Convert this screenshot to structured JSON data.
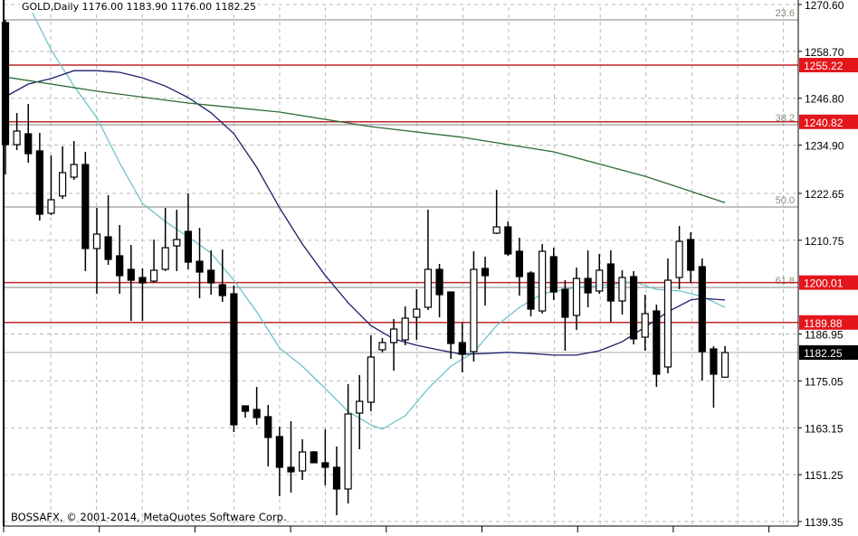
{
  "header": {
    "title": "GOLD,Daily  1176.00 1183.90 1176.00 1182.25"
  },
  "footer": {
    "copyright": "BOSSAFX, © 2001-2014, MetaQuotes Software Corp."
  },
  "colors": {
    "bull": "#ffffff",
    "bear": "#000000",
    "grid": "#b8b8b8",
    "level": "#c0262b",
    "fib": "#9a9a9a",
    "ma_fast": "#6fc3c8",
    "ma_mid": "#1c1f6b",
    "ma_slow": "#2f6a35",
    "price_box": "#000000",
    "level_box": "#e3161b"
  },
  "chart_data": {
    "type": "candlestick",
    "symbol": "GOLD",
    "timeframe": "Daily",
    "ylim": [
      1139.35,
      1270.6
    ],
    "grid": true,
    "y_ticks": [
      "1270.60",
      "1258.70",
      "1246.80",
      "1234.90",
      "1222.65",
      "1210.75",
      "1186.95",
      "1175.05",
      "1163.15",
      "1151.25",
      "1139.35"
    ],
    "current_price": "1182.25",
    "levels": [
      {
        "label": "1255.22",
        "value": 1255.22
      },
      {
        "label": "1240.82",
        "value": 1240.82
      },
      {
        "label": "1200.01",
        "value": 1200.01
      },
      {
        "label": "1189.88",
        "value": 1189.88
      }
    ],
    "fibonacci": [
      {
        "label": "23.6",
        "value": 1266.7
      },
      {
        "label": "38.2",
        "value": 1240.08
      },
      {
        "label": "50.0",
        "value": 1219.2
      },
      {
        "label": "61.8",
        "value": 1198.78
      }
    ],
    "candles": [
      [
        1266.01,
        1266.7,
        1227.46,
        1235.03
      ],
      [
        1235.03,
        1243.06,
        1233.66,
        1238.48
      ],
      [
        1237.79,
        1245.36,
        1230.44,
        1232.74
      ],
      [
        1233.43,
        1238.02,
        1215.76,
        1217.37
      ],
      [
        1217.6,
        1232.28,
        1217.14,
        1221.04
      ],
      [
        1222.0,
        1234.58,
        1221.27,
        1227.92
      ],
      [
        1226.77,
        1235.95,
        1226.08,
        1229.99
      ],
      [
        1229.99,
        1233.2,
        1202.91,
        1208.65
      ],
      [
        1208.65,
        1218.97,
        1197.17,
        1212.32
      ],
      [
        1211.63,
        1222.18,
        1204.51,
        1205.89
      ],
      [
        1206.81,
        1214.61,
        1197.17,
        1201.76
      ],
      [
        1203.37,
        1209.56,
        1190.29,
        1200.61
      ],
      [
        1201.3,
        1203.6,
        1190.29,
        1199.93
      ],
      [
        1200.38,
        1210.94,
        1199.93,
        1203.14
      ],
      [
        1203.37,
        1218.97,
        1202.91,
        1208.87
      ],
      [
        1209.33,
        1218.51,
        1202.91,
        1210.94
      ],
      [
        1213.01,
        1222.64,
        1203.37,
        1205.2
      ],
      [
        1205.43,
        1213.92,
        1196.03,
        1202.68
      ],
      [
        1203.14,
        1208.19,
        1196.94,
        1199.93
      ],
      [
        1199.47,
        1208.42,
        1195.11,
        1196.71
      ],
      [
        1197.17,
        1199.24,
        1162.06,
        1163.9
      ],
      [
        1168.72,
        1168.72,
        1165.74,
        1167.34
      ],
      [
        1167.8,
        1173.54,
        1163.9,
        1165.74
      ],
      [
        1165.97,
        1168.95,
        1153.35,
        1160.69
      ],
      [
        1160.92,
        1163.44,
        1145.78,
        1153.12
      ],
      [
        1153.12,
        1164.82,
        1146.69,
        1151.97
      ],
      [
        1152.2,
        1160.23,
        1149.9,
        1157.02
      ],
      [
        1157.02,
        1157.25,
        1154.27,
        1154.27
      ],
      [
        1154.27,
        1162.75,
        1148.53,
        1153.12
      ],
      [
        1153.12,
        1158.39,
        1140.96,
        1147.61
      ],
      [
        1147.61,
        1174.23,
        1143.94,
        1166.65
      ],
      [
        1166.88,
        1176.52,
        1157.71,
        1169.87
      ],
      [
        1169.64,
        1186.62,
        1167.34,
        1181.11
      ],
      [
        1182.95,
        1185.93,
        1182.26,
        1184.78
      ],
      [
        1184.78,
        1190.75,
        1177.67,
        1188.22
      ],
      [
        1185.47,
        1193.96,
        1184.09,
        1190.98
      ],
      [
        1191.21,
        1198.32,
        1185.47,
        1193.27
      ],
      [
        1193.73,
        1218.51,
        1193.04,
        1203.37
      ],
      [
        1203.37,
        1204.74,
        1191.21,
        1196.94
      ],
      [
        1197.63,
        1197.63,
        1180.65,
        1184.55
      ],
      [
        1184.78,
        1189.83,
        1177.21,
        1181.8
      ],
      [
        1182.49,
        1207.96,
        1179.96,
        1203.37
      ],
      [
        1203.6,
        1206.58,
        1194.19,
        1201.76
      ],
      [
        1212.55,
        1223.56,
        1212.32,
        1214.15
      ],
      [
        1214.15,
        1215.53,
        1206.81,
        1207.27
      ],
      [
        1207.96,
        1211.4,
        1196.71,
        1201.53
      ],
      [
        1202.45,
        1202.91,
        1191.44,
        1193.27
      ],
      [
        1192.81,
        1209.79,
        1192.12,
        1207.96
      ],
      [
        1206.58,
        1208.87,
        1195.57,
        1197.63
      ],
      [
        1198.32,
        1200.61,
        1182.72,
        1191.21
      ],
      [
        1191.67,
        1203.83,
        1187.99,
        1201.07
      ],
      [
        1201.07,
        1208.19,
        1193.73,
        1197.4
      ],
      [
        1197.86,
        1207.27,
        1197.17,
        1203.14
      ],
      [
        1204.74,
        1208.19,
        1190.06,
        1195.34
      ],
      [
        1195.34,
        1203.14,
        1191.9,
        1201.3
      ],
      [
        1201.53,
        1202.91,
        1184.32,
        1185.7
      ],
      [
        1186.16,
        1196.94,
        1182.72,
        1192.12
      ],
      [
        1192.81,
        1194.42,
        1173.54,
        1176.75
      ],
      [
        1178.59,
        1206.12,
        1176.98,
        1200.61
      ],
      [
        1201.3,
        1214.38,
        1198.32,
        1210.48
      ],
      [
        1210.94,
        1212.78,
        1199.93,
        1203.14
      ],
      [
        1204.06,
        1206.12,
        1175.14,
        1182.49
      ],
      [
        1183.18,
        1183.86,
        1168.26,
        1176.75
      ],
      [
        1176.0,
        1183.9,
        1176.0,
        1182.25
      ]
    ],
    "moving_averages": [
      {
        "color_key": "ma_fast",
        "points": [
          [
            2,
            1270.6
          ],
          [
            4,
            1259.1
          ],
          [
            6,
            1249.9
          ],
          [
            8,
            1241.9
          ],
          [
            10,
            1230.4
          ],
          [
            12,
            1220.1
          ],
          [
            14,
            1215.5
          ],
          [
            16,
            1211.6
          ],
          [
            18,
            1207.5
          ],
          [
            20,
            1200.6
          ],
          [
            22,
            1192.6
          ],
          [
            24,
            1183.4
          ],
          [
            26,
            1178.8
          ],
          [
            28,
            1173.1
          ],
          [
            30,
            1167.3
          ],
          [
            32,
            1163.9
          ],
          [
            33,
            1162.8
          ],
          [
            35,
            1166.2
          ],
          [
            37,
            1173.1
          ],
          [
            39,
            1178.8
          ],
          [
            41,
            1182.3
          ],
          [
            43,
            1189.1
          ],
          [
            45,
            1193.7
          ],
          [
            47,
            1197.2
          ],
          [
            50,
            1198.8
          ],
          [
            53,
            1199.5
          ],
          [
            55,
            1200.2
          ],
          [
            57,
            1198.3
          ],
          [
            59,
            1197.9
          ],
          [
            61,
            1196.5
          ],
          [
            63,
            1193.7
          ]
        ]
      },
      {
        "color_key": "ma_mid",
        "points": [
          [
            0,
            1247.2
          ],
          [
            2,
            1250.4
          ],
          [
            4,
            1251.8
          ],
          [
            6,
            1253.8
          ],
          [
            8,
            1253.8
          ],
          [
            10,
            1253.4
          ],
          [
            12,
            1252.0
          ],
          [
            14,
            1249.9
          ],
          [
            16,
            1247.0
          ],
          [
            18,
            1243.1
          ],
          [
            20,
            1237.8
          ],
          [
            22,
            1229.3
          ],
          [
            24,
            1219.0
          ],
          [
            26,
            1209.8
          ],
          [
            28,
            1201.8
          ],
          [
            30,
            1194.9
          ],
          [
            32,
            1189.1
          ],
          [
            34,
            1185.7
          ],
          [
            36,
            1184.1
          ],
          [
            38,
            1182.9
          ],
          [
            40,
            1181.8
          ],
          [
            42,
            1182.0
          ],
          [
            44,
            1182.3
          ],
          [
            46,
            1182.0
          ],
          [
            48,
            1181.6
          ],
          [
            50,
            1181.6
          ],
          [
            52,
            1182.7
          ],
          [
            54,
            1185.0
          ],
          [
            56,
            1188.7
          ],
          [
            58,
            1192.6
          ],
          [
            60,
            1195.6
          ],
          [
            61,
            1196.0
          ],
          [
            63,
            1195.6
          ]
        ]
      },
      {
        "color_key": "ma_slow",
        "points": [
          [
            0,
            1252.2
          ],
          [
            8,
            1248.6
          ],
          [
            16,
            1245.6
          ],
          [
            24,
            1243.3
          ],
          [
            32,
            1239.6
          ],
          [
            40,
            1236.9
          ],
          [
            48,
            1233.2
          ],
          [
            56,
            1227.0
          ],
          [
            63,
            1220.3
          ]
        ]
      }
    ]
  }
}
